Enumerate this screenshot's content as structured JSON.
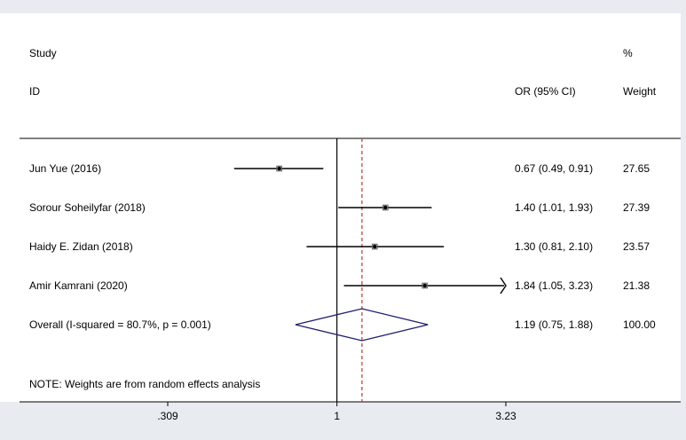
{
  "chart_data": {
    "type": "forest",
    "title": "",
    "headers": {
      "study_line1": "Study",
      "study_line2": "ID",
      "or": "OR (95% CI)",
      "weight_line1": "%",
      "weight_line2": "Weight"
    },
    "studies": [
      {
        "label": "Jun Yue (2016)",
        "or": 0.67,
        "lo": 0.49,
        "hi": 0.91,
        "or_text": "0.67 (0.49, 0.91)",
        "weight": "27.65",
        "arrow_right": false
      },
      {
        "label": "Sorour Soheilyfar (2018)",
        "or": 1.4,
        "lo": 1.01,
        "hi": 1.93,
        "or_text": "1.40 (1.01, 1.93)",
        "weight": "27.39",
        "arrow_right": false
      },
      {
        "label": "Haidy E. Zidan (2018)",
        "or": 1.3,
        "lo": 0.81,
        "hi": 2.1,
        "or_text": "1.30 (0.81, 2.10)",
        "weight": "23.57",
        "arrow_right": false
      },
      {
        "label": "Amir Kamrani (2020)",
        "or": 1.84,
        "lo": 1.05,
        "hi": 3.23,
        "or_text": "1.84 (1.05, 3.23)",
        "weight": "21.38",
        "arrow_right": true
      }
    ],
    "overall": {
      "label": "Overall  (I-squared = 80.7%, p = 0.001)",
      "or": 1.19,
      "lo": 0.75,
      "hi": 1.88,
      "or_text": "1.19 (0.75, 1.88)",
      "weight": "100.00"
    },
    "note": "NOTE: Weights are from random effects analysis",
    "x_axis": {
      "scale": "log",
      "range": [
        0.309,
        3.23
      ],
      "null_value": 1,
      "ticks": [
        {
          "value": 0.309,
          "label": ".309"
        },
        {
          "value": 1,
          "label": "1"
        },
        {
          "value": 3.23,
          "label": "3.23"
        }
      ]
    },
    "colors": {
      "background": "#e8ecf0",
      "plot_background": "#ffffff",
      "null_line": "#000000",
      "overall_line": "#c0392b",
      "diamond": "#1f1f6e",
      "ci_line": "#000000"
    }
  }
}
